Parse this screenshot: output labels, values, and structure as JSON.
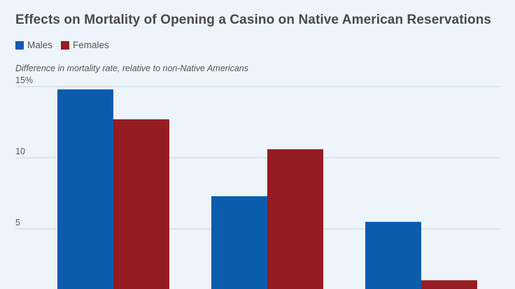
{
  "chart_data": {
    "type": "bar",
    "title": "Effects on Mortality of Opening a Casino on Native American Reservations",
    "ylabel": "Difference in mortality rate, relative to non-Native Americans",
    "xlabel": "",
    "ylim": [
      0,
      15
    ],
    "yticks": [
      {
        "value": 5,
        "label": "5"
      },
      {
        "value": 10,
        "label": "10"
      },
      {
        "value": 15,
        "label": "15%"
      }
    ],
    "grid": true,
    "legend": "top-left",
    "categories": [
      "",
      "",
      ""
    ],
    "series": [
      {
        "name": "Males",
        "color": "#0b5cad",
        "values": [
          14.8,
          7.3,
          5.5
        ]
      },
      {
        "name": "Females",
        "color": "#951c23",
        "values": [
          12.7,
          10.6,
          1.4
        ]
      }
    ]
  }
}
